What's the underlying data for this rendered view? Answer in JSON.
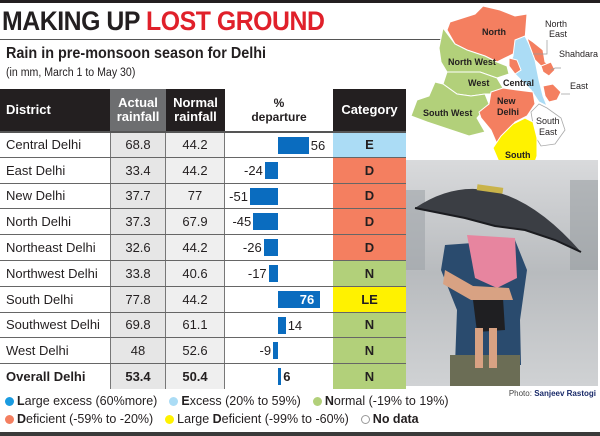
{
  "headline": {
    "part1": "MAKING UP",
    "part2": "LOST GROUND"
  },
  "subtitle": "Rain in pre-monsoon season for Delhi",
  "subnote": "(in mm, March 1 to May 30)",
  "table": {
    "headers": {
      "district": "District",
      "actual_l1": "Actual",
      "actual_l2": "rainfall",
      "normal_l1": "Normal",
      "normal_l2": "rainfall",
      "departure_l1": "%",
      "departure_l2": "departure",
      "category": "Category"
    },
    "rows": [
      {
        "district": "Central Delhi",
        "actual": "68.8",
        "normal": "44.2",
        "departure": "56",
        "category": "E"
      },
      {
        "district": "East Delhi",
        "actual": "33.4",
        "normal": "44.2",
        "departure": "-24",
        "category": "D"
      },
      {
        "district": "New Delhi",
        "actual": "37.7",
        "normal": "77",
        "departure": "-51",
        "category": "D"
      },
      {
        "district": "North Delhi",
        "actual": "37.3",
        "normal": "67.9",
        "departure": "-45",
        "category": "D"
      },
      {
        "district": "Northeast Delhi",
        "actual": "32.6",
        "normal": "44.2",
        "departure": "-26",
        "category": "D"
      },
      {
        "district": "Northwest Delhi",
        "actual": "33.8",
        "normal": "40.6",
        "departure": "-17",
        "category": "N"
      },
      {
        "district": "South Delhi",
        "actual": "77.8",
        "normal": "44.2",
        "departure": "76",
        "category": "LE"
      },
      {
        "district": "Southwest Delhi",
        "actual": "69.8",
        "normal": "61.1",
        "departure": "14",
        "category": "N"
      },
      {
        "district": "West Delhi",
        "actual": "48",
        "normal": "52.6",
        "departure": "-9",
        "category": "N"
      },
      {
        "district": "Overall Delhi",
        "actual": "53.4",
        "normal": "50.4",
        "departure": "6",
        "category": "N"
      }
    ]
  },
  "category_colors": {
    "LE_dot": "#1a9be0",
    "E": "#abdcf5",
    "N": "#b2d07a",
    "D": "#f47f60",
    "LE": "#fff200",
    "bar": "#0a6cbf"
  },
  "legend": [
    {
      "key": "L",
      "rest": "arge excess (60%more)",
      "color": "#1a9be0"
    },
    {
      "key": "E",
      "rest": "xcess (20% to 59%)",
      "color": "#abdcf5"
    },
    {
      "key": "N",
      "rest": "ormal (-19% to 19%)",
      "color": "#b2d07a"
    },
    {
      "key": "D",
      "rest": "eficient (-59% to -20%)",
      "color": "#f47f60"
    },
    {
      "key_pre": "Large ",
      "key": "D",
      "rest": "eficient (-99% to -60%)",
      "color": "#fff200"
    },
    {
      "key": "No data",
      "rest": "",
      "color": "#ffffff"
    }
  ],
  "map": {
    "labels": [
      "North",
      "North East",
      "Shahdara",
      "North West",
      "Central",
      "West",
      "East",
      "New Delhi",
      "South West",
      "South East",
      "South"
    ]
  },
  "photo_credit": {
    "label": "Photo:",
    "name": "Sanjeev Rastogi"
  },
  "chart_data": {
    "type": "table",
    "title": "Rain in pre-monsoon season for Delhi",
    "subtitle": "(in mm, March 1 to May 30)",
    "columns": [
      "District",
      "Actual rainfall",
      "Normal rainfall",
      "% departure",
      "Category"
    ],
    "categories": [
      "Central Delhi",
      "East Delhi",
      "New Delhi",
      "North Delhi",
      "Northeast Delhi",
      "Northwest Delhi",
      "South Delhi",
      "Southwest Delhi",
      "West Delhi",
      "Overall Delhi"
    ],
    "series": [
      {
        "name": "Actual rainfall (mm)",
        "values": [
          68.8,
          33.4,
          37.7,
          37.3,
          32.6,
          33.8,
          77.8,
          69.8,
          48,
          53.4
        ]
      },
      {
        "name": "Normal rainfall (mm)",
        "values": [
          44.2,
          44.2,
          77,
          67.9,
          44.2,
          40.6,
          44.2,
          61.1,
          52.6,
          50.4
        ]
      },
      {
        "name": "% departure",
        "type": "bar",
        "values": [
          56,
          -24,
          -51,
          -45,
          -26,
          -17,
          76,
          14,
          -9,
          6
        ]
      }
    ],
    "category_values": [
      "E",
      "D",
      "D",
      "D",
      "D",
      "N",
      "LE",
      "N",
      "N",
      "N"
    ],
    "legend": [
      "Large excess (60%more)",
      "Excess (20% to 59%)",
      "Normal (-19% to 19%)",
      "Deficient (-59% to -20%)",
      "Large Deficient (-99% to -60%)",
      "No data"
    ]
  }
}
